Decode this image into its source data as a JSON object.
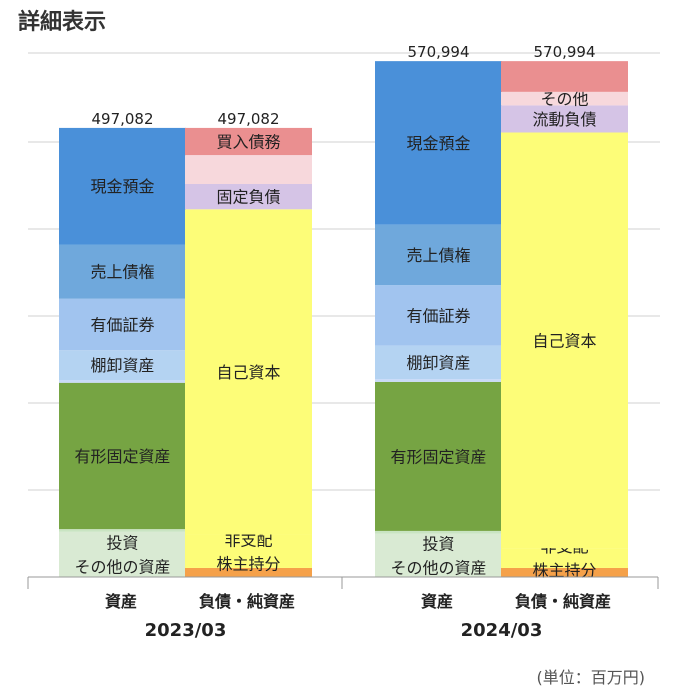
{
  "page": {
    "title": "詳細表示",
    "unit": "(単位：百万円)"
  },
  "chart_data": {
    "type": "stacked-bar",
    "title": "詳細表示",
    "unit": "(単位：百万円)",
    "ylim": [
      0,
      580000
    ],
    "grid": true,
    "periods": [
      {
        "period": "2023/03",
        "bars": [
          {
            "label": "資産",
            "total": 497082,
            "total_label": "497,082",
            "segments": [
              {
                "name": "投資\nその他の資産",
                "value": 50000,
                "color": "#d9ead3"
              },
              {
                "name": "",
                "value": 3000,
                "color": "#c9e4c2"
              },
              {
                "name": "有形固定資産",
                "value": 162000,
                "color": "#76a443"
              },
              {
                "name": "",
                "value": 3000,
                "color": "#c9daf8"
              },
              {
                "name": "棚卸資産",
                "value": 33000,
                "color": "#b4d3f2"
              },
              {
                "name": "有価証券",
                "value": 57000,
                "color": "#a1c4ef"
              },
              {
                "name": "売上債権",
                "value": 60000,
                "color": "#6fa8dc"
              },
              {
                "name": "現金預金",
                "value": 129082,
                "color": "#4a90d9"
              }
            ]
          },
          {
            "label": "負債・純資産",
            "total": 497082,
            "total_label": "497,082",
            "segments": [
              {
                "name": "",
                "value": 10000,
                "color": "#f5a14a"
              },
              {
                "name": "非支配\n株主持分",
                "value": 37000,
                "color": "#fdfd78"
              },
              {
                "name": "自己資本",
                "value": 360000,
                "color": "#fdfd78"
              },
              {
                "name": "固定負債",
                "value": 28000,
                "color": "#d5c4e6"
              },
              {
                "name": "",
                "value": 32000,
                "color": "#f7d8dc"
              },
              {
                "name": "買入債務",
                "value": 30082,
                "color": "#ea8f90"
              }
            ]
          }
        ]
      },
      {
        "period": "2024/03",
        "bars": [
          {
            "label": "資産",
            "total": 570994,
            "total_label": "570,994",
            "segments": [
              {
                "name": "投資\nその他の資産",
                "value": 48000,
                "color": "#d9ead3"
              },
              {
                "name": "",
                "value": 3000,
                "color": "#c9e4c2"
              },
              {
                "name": "有形固定資産",
                "value": 165000,
                "color": "#76a443"
              },
              {
                "name": "",
                "value": 3000,
                "color": "#c9daf8"
              },
              {
                "name": "棚卸資産",
                "value": 37000,
                "color": "#b4d3f2"
              },
              {
                "name": "有価証券",
                "value": 67000,
                "color": "#a1c4ef"
              },
              {
                "name": "売上債権",
                "value": 67000,
                "color": "#6fa8dc"
              },
              {
                "name": "現金預金",
                "value": 180994,
                "color": "#4a90d9"
              }
            ]
          },
          {
            "label": "負債・純資産",
            "total": 570994,
            "total_label": "570,994",
            "segments": [
              {
                "name": "",
                "value": 10000,
                "color": "#f5a14a"
              },
              {
                "name": "非支配\n株主持分",
                "value": 22000,
                "color": "#fdfd78"
              },
              {
                "name": "自己資本",
                "value": 460000,
                "color": "#fdfd78"
              },
              {
                "name": "流動負債",
                "value": 30000,
                "color": "#d5c4e6"
              },
              {
                "name": "その他",
                "value": 15000,
                "color": "#f7d8dc"
              },
              {
                "name": "",
                "value": 33994,
                "color": "#ea8f90"
              }
            ]
          }
        ]
      }
    ]
  }
}
